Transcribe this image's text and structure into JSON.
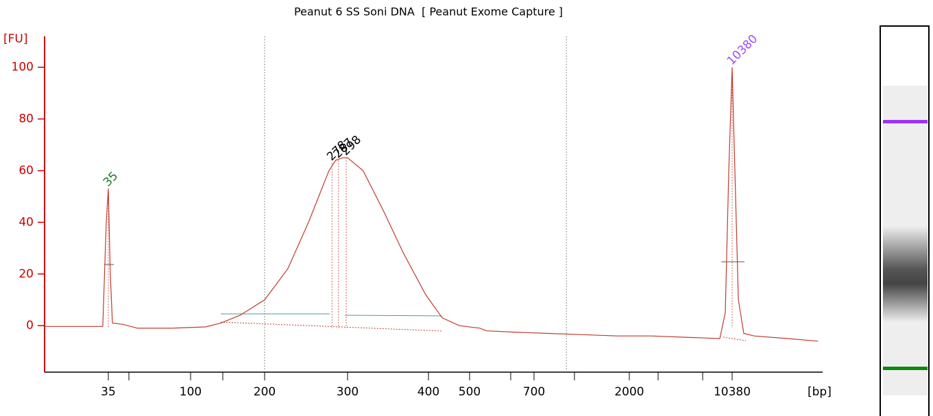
{
  "chart_data": {
    "type": "line",
    "title": "Peanut 6 SS Soni DNA  [ Peanut Exome Capture ]",
    "y_label": "[FU]",
    "x_label": "[bp]",
    "x_scale": "ladder",
    "xticks": [
      35,
      100,
      200,
      300,
      400,
      500,
      700,
      2000,
      10380
    ],
    "xlim": [
      15.5,
      41000
    ],
    "ylim": [
      -18,
      112
    ],
    "yticks": [
      0,
      20,
      40,
      60,
      80,
      100
    ],
    "region_bounds": [
      200,
      1000
    ],
    "series": [
      {
        "color": "#c0392b",
        "x": [
          15.5,
          32.6,
          34.1,
          35,
          35.9,
          36.9,
          42.3,
          50.7,
          78.2,
          115,
          132.6,
          158.7,
          200,
          224,
          247.8,
          274,
          283,
          293,
          300,
          317,
          340,
          366,
          396,
          431,
          473,
          528,
          546,
          631,
          820,
          1198,
          1746,
          2842,
          4920,
          8520,
          9300,
          9840,
          10380,
          10850,
          11470,
          12510,
          14750,
          25300,
          41000
        ],
        "values": [
          -0.3,
          -0.3,
          40,
          53,
          20,
          1,
          0.5,
          -1,
          -1,
          -0.5,
          1,
          4,
          10,
          22,
          40,
          60,
          64,
          65,
          65,
          60,
          45,
          28,
          12,
          3,
          0,
          -1,
          -2,
          -2.5,
          -3,
          -3.5,
          -4,
          -4,
          -4.5,
          -5,
          5,
          60,
          100,
          60,
          10,
          -3,
          -4,
          -5,
          -6
        ]
      }
    ],
    "peaks": [
      {
        "size": 35,
        "height": 53,
        "color": "#1a7a1a"
      },
      {
        "size": 278,
        "height": 63,
        "color": "#000000"
      },
      {
        "size": 287,
        "height": 64,
        "color": "#000000"
      },
      {
        "size": 298,
        "height": 65,
        "color": "#000000"
      },
      {
        "size": 10380,
        "height": 100,
        "color": "#9b4dff"
      }
    ]
  }
}
